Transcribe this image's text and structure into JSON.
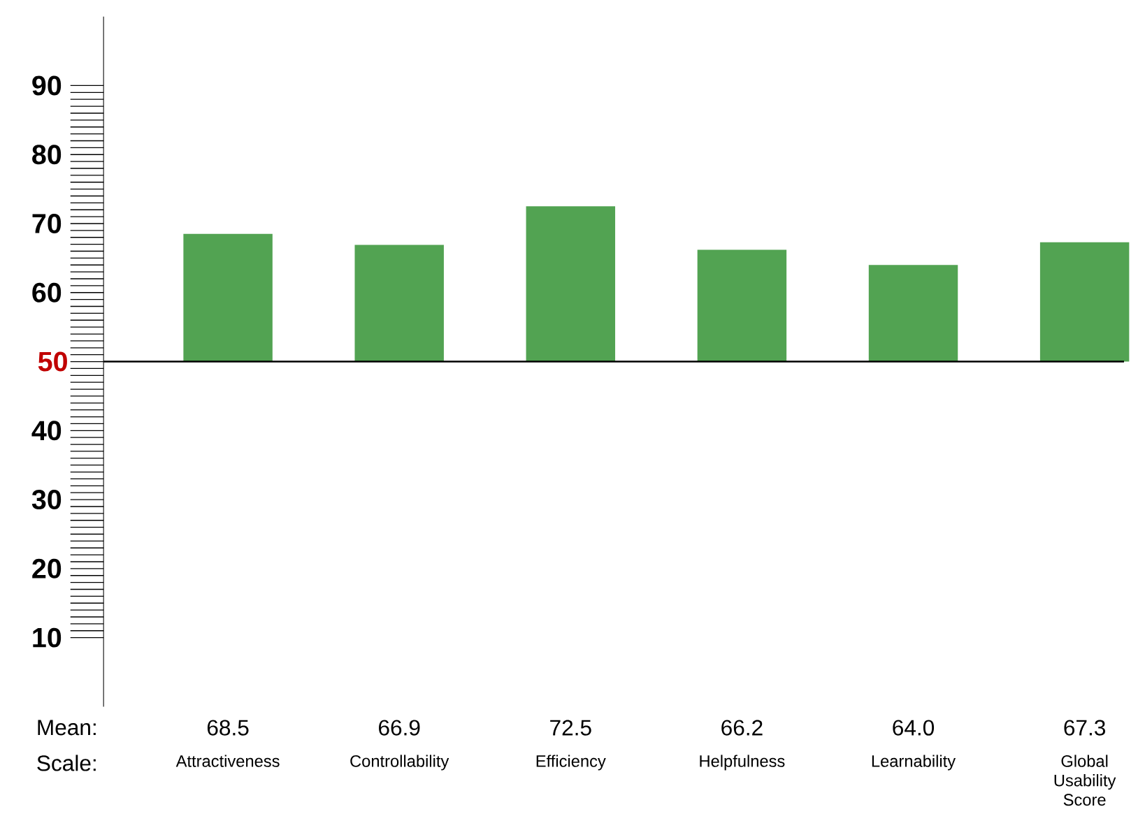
{
  "chart_data": {
    "type": "bar",
    "categories": [
      "Attractiveness",
      "Controllability",
      "Efficiency",
      "Helpfulness",
      "Learnability",
      "Global Usability Score"
    ],
    "values": [
      18.5,
      16.9,
      22.5,
      16.2,
      14.0,
      17.3
    ],
    "base": [
      50,
      50,
      50,
      50,
      50,
      50
    ],
    "value_labels": [
      "68.5",
      "66.9",
      "72.5",
      "66.2",
      "64.0",
      "67.3"
    ],
    "color": "#52a352",
    "ylim": [
      0,
      100
    ],
    "yticks": [
      10,
      20,
      30,
      40,
      {
        "value": 50,
        "label": null
      },
      60,
      70,
      80,
      90
    ],
    "ref_lines": [
      {
        "axis": "y",
        "value": 50,
        "label": "50",
        "color": "#000000"
      }
    ],
    "annotations": [
      "Mean:",
      "Scale:"
    ],
    "grid": false
  }
}
